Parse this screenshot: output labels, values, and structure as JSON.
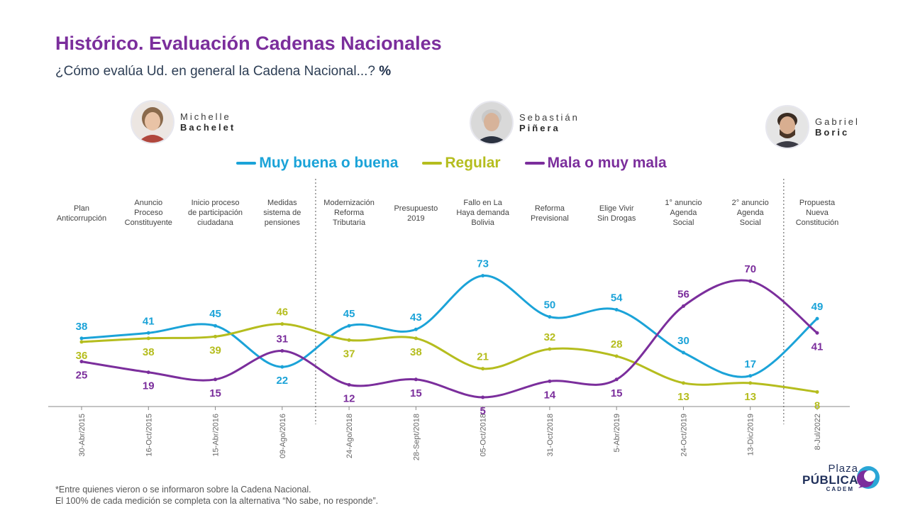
{
  "header": {
    "title": "Histórico. Evaluación Cadenas Nacionales",
    "subtitle": "¿Cómo evalúa Ud. en general la Cadena Nacional...?",
    "subtitle_unit": "%"
  },
  "presidents": [
    {
      "first": "Michelle",
      "last": "Bachelet"
    },
    {
      "first": "Sebastián",
      "last": "Piñera"
    },
    {
      "first": "Gabriel",
      "last": "Boric"
    }
  ],
  "footnote": {
    "line1": "*Entre quienes vieron o se informaron sobre la Cadena Nacional.",
    "line2": "El 100% de cada medición se completa con la alternativa “No sabe, no responde”."
  },
  "logo": {
    "top": "Plaza",
    "middle": "PÚBLICA",
    "bottom": "CADEM"
  },
  "colors": {
    "blue": "#1ba3d8",
    "olive": "#b5bd1e",
    "purple": "#7b2e9c",
    "title": "#7b2e9c"
  },
  "chart_data": {
    "type": "line",
    "x": [
      "30-Abr/2015",
      "16-Oct/2015",
      "15-Abr/2016",
      "09-Ago/2016",
      "24-Ago/2018",
      "28-Sept/2018",
      "05-Oct/2018",
      "31-Oct/2018",
      "5-Abr/2019",
      "24-Oct/2019",
      "13-Dic/2019",
      "8-Jul/2022"
    ],
    "events": [
      [
        "Plan",
        "Anticorrupción"
      ],
      [
        "Anuncio",
        "Proceso",
        "Constituyente"
      ],
      [
        "Inicio proceso",
        "de participación",
        "ciudadana"
      ],
      [
        "Medidas",
        "sistema de",
        "pensiones"
      ],
      [
        "Modernización",
        "Reforma",
        "Tributaria"
      ],
      [
        "Presupuesto",
        "2019"
      ],
      [
        "Fallo en La",
        "Haya demanda",
        "Bolivia"
      ],
      [
        "Reforma",
        "Previsional"
      ],
      [
        "Elige Vivir",
        "Sin Drogas"
      ],
      [
        "1° anuncio",
        "Agenda",
        "Social"
      ],
      [
        "2° anuncio",
        "Agenda",
        "Social"
      ],
      [
        "Propuesta",
        "Nueva",
        "Constitución"
      ]
    ],
    "series": [
      {
        "name": "Muy buena o buena",
        "color": "#1ba3d8",
        "values": [
          38,
          41,
          45,
          22,
          45,
          43,
          73,
          50,
          54,
          30,
          17,
          49
        ]
      },
      {
        "name": "Regular",
        "color": "#b5bd1e",
        "values": [
          36,
          38,
          39,
          46,
          37,
          38,
          21,
          32,
          28,
          13,
          13,
          8
        ]
      },
      {
        "name": "Mala o muy mala",
        "color": "#7b2e9c",
        "values": [
          25,
          19,
          15,
          31,
          12,
          15,
          5,
          14,
          15,
          56,
          70,
          41
        ]
      }
    ],
    "ylim": [
      0,
      80
    ],
    "legend_position": "top-center",
    "grid": false
  }
}
